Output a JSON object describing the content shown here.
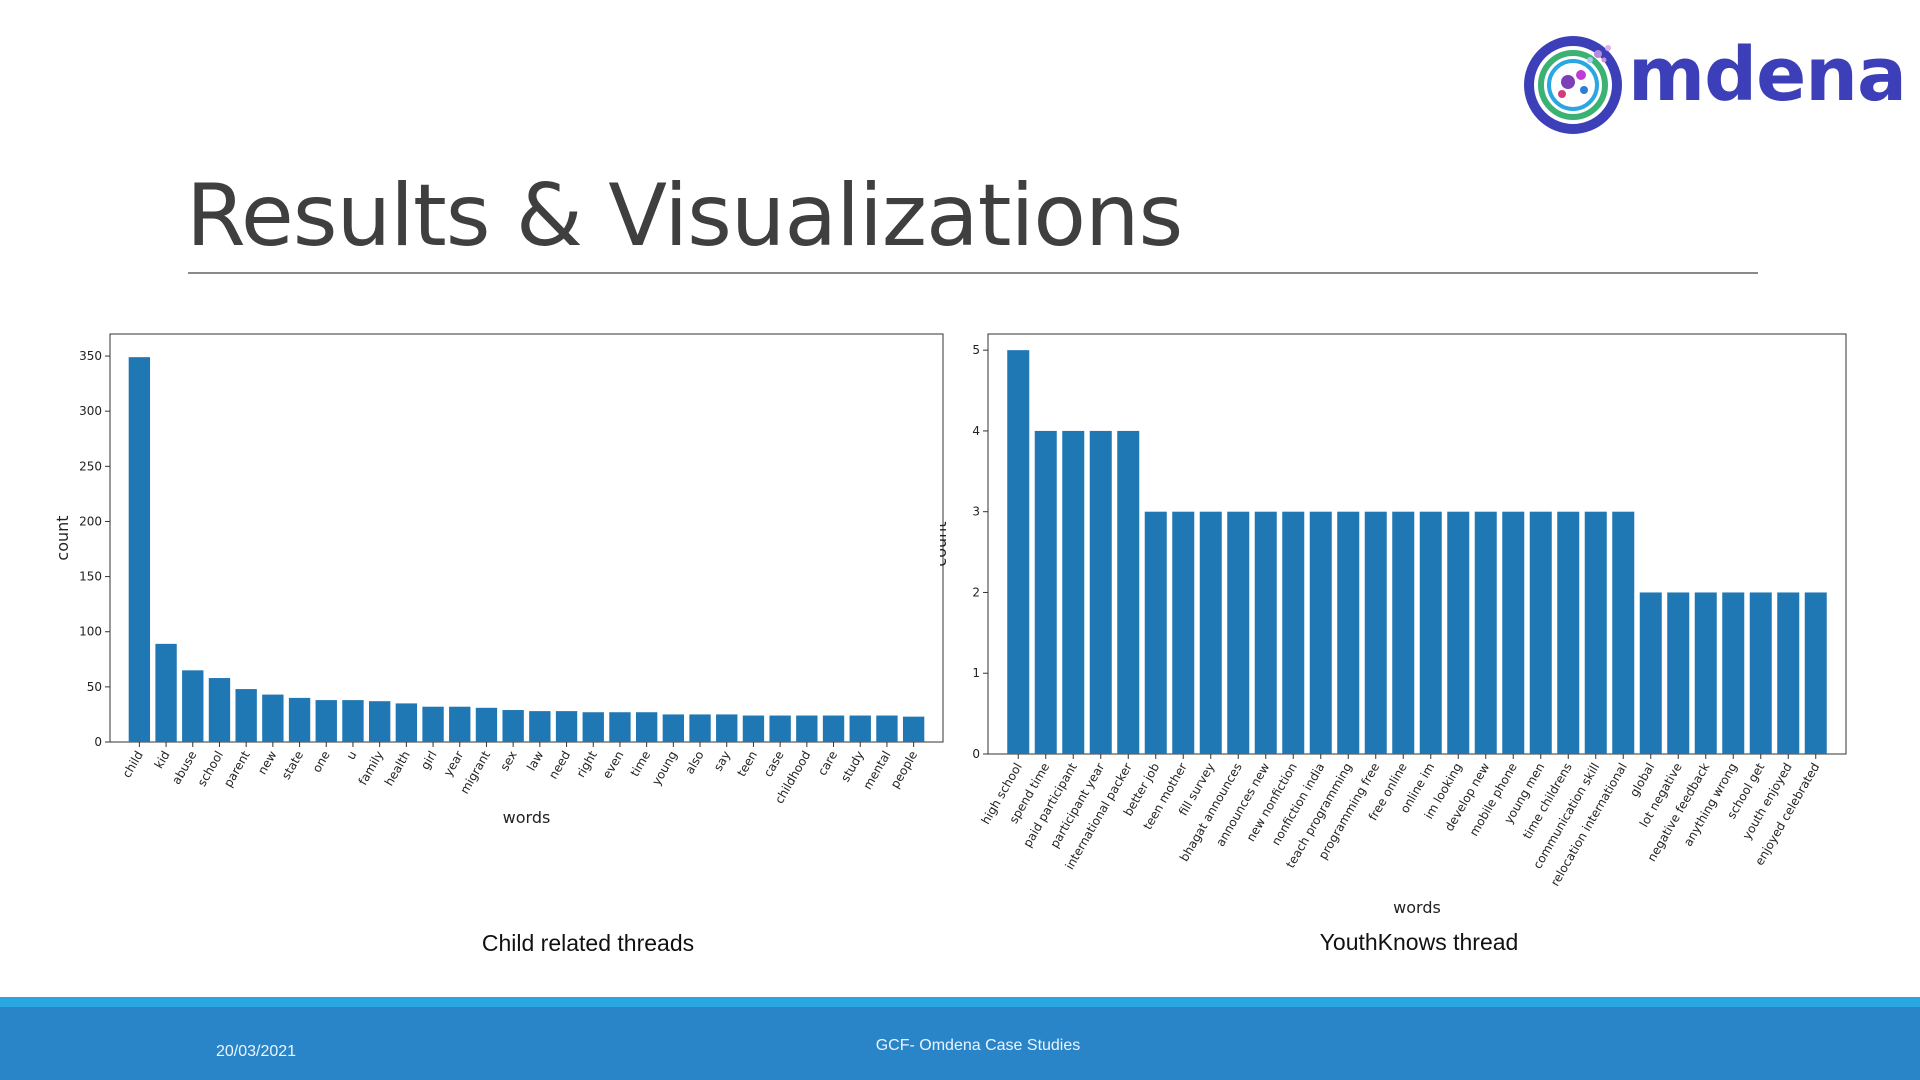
{
  "brand": {
    "name": "mdena",
    "accent": "#3d3fb8"
  },
  "slide": {
    "title": "Results & Visualizations"
  },
  "chart_data": [
    {
      "type": "bar",
      "title": "",
      "caption": "Child related threads",
      "xlabel": "words",
      "ylabel": "count",
      "ylim": [
        0,
        370
      ],
      "yticks": [
        0,
        50,
        100,
        150,
        200,
        250,
        300,
        350
      ],
      "bar_color": "#1f77b4",
      "categories": [
        "child",
        "kid",
        "abuse",
        "school",
        "parent",
        "new",
        "state",
        "one",
        "u",
        "family",
        "health",
        "girl",
        "year",
        "migrant",
        "sex",
        "law",
        "need",
        "right",
        "even",
        "time",
        "young",
        "also",
        "say",
        "teen",
        "case",
        "childhood",
        "care",
        "study",
        "mental",
        "people"
      ],
      "values": [
        349,
        89,
        65,
        58,
        48,
        43,
        40,
        38,
        38,
        37,
        35,
        32,
        32,
        31,
        29,
        28,
        28,
        27,
        27,
        27,
        25,
        25,
        25,
        24,
        24,
        24,
        24,
        24,
        24,
        23
      ]
    },
    {
      "type": "bar",
      "title": "",
      "caption": "YouthKnows thread",
      "xlabel": "words",
      "ylabel": "count",
      "ylim": [
        0,
        5.2
      ],
      "yticks": [
        0,
        1,
        2,
        3,
        4,
        5
      ],
      "bar_color": "#1f77b4",
      "categories": [
        "high school",
        "spend time",
        "paid participant",
        "participant year",
        "international packer",
        "better job",
        "teen mother",
        "fill survey",
        "bhagat announces",
        "announces new",
        "new nonfiction",
        "nonfiction india",
        "teach programming",
        "programming free",
        "free online",
        "online im",
        "im looking",
        "develop new",
        "mobile phone",
        "young men",
        "time childrens",
        "communication skill",
        "relocation international",
        "global",
        "lot negative",
        "negative feedback",
        "anything wrong",
        "school get",
        "youth enjoyed",
        "enjoyed celebrated"
      ],
      "values": [
        5,
        4,
        4,
        4,
        4,
        3,
        3,
        3,
        3,
        3,
        3,
        3,
        3,
        3,
        3,
        3,
        3,
        3,
        3,
        3,
        3,
        3,
        3,
        2,
        2,
        2,
        2,
        2,
        2,
        2
      ]
    }
  ],
  "footer": {
    "date": "20/03/2021",
    "center": "GCF- Omdena Case Studies"
  }
}
